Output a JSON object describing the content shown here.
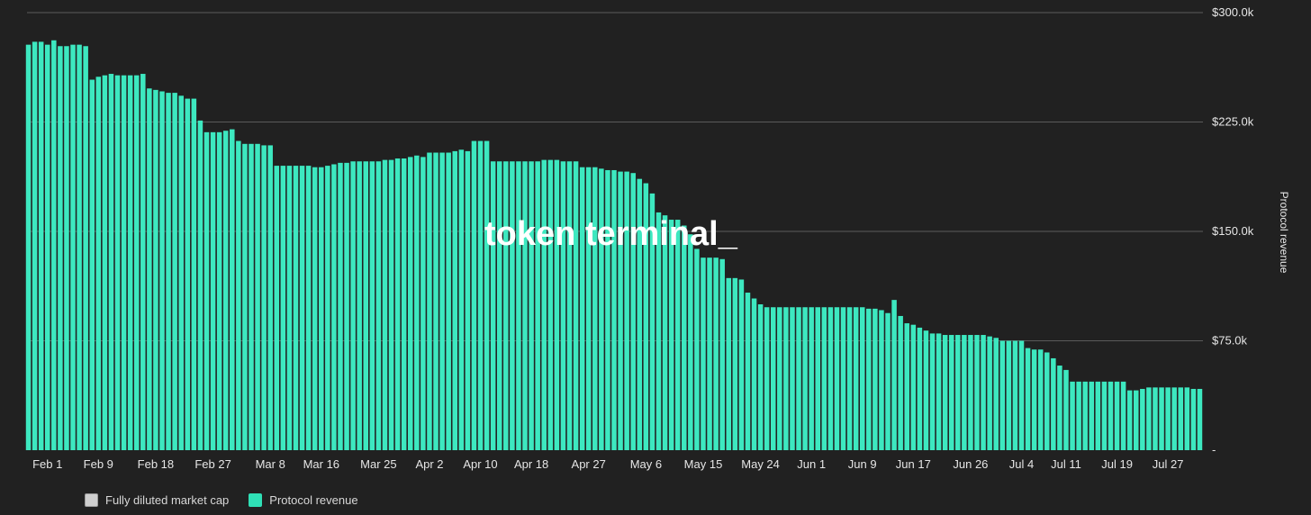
{
  "chart_data": {
    "type": "bar",
    "watermark": "token terminal_",
    "colors": {
      "background": "#212121",
      "bar": "#3DE8C0",
      "grid": "#5a5a5a",
      "text": "#e6e6e6",
      "legend_market_cap": "#cfcfcf",
      "legend_revenue": "#2fe0b6"
    },
    "y_axis": {
      "label": "Protocol revenue",
      "side": "right",
      "ylim": [
        0,
        300000
      ],
      "ticks": [
        {
          "value": 0,
          "label": "-"
        },
        {
          "value": 75000,
          "label": "$75.0k"
        },
        {
          "value": 150000,
          "label": "$150.0k"
        },
        {
          "value": 225000,
          "label": "$225.0k"
        },
        {
          "value": 300000,
          "label": "$300.0k"
        }
      ]
    },
    "x_axis": {
      "first_date": "Feb 1",
      "last_date": "Jul 27",
      "ticks": [
        {
          "label": "Feb 1",
          "index": 3
        },
        {
          "label": "Feb 9",
          "index": 11
        },
        {
          "label": "Feb 18",
          "index": 20
        },
        {
          "label": "Feb 27",
          "index": 29
        },
        {
          "label": "Mar 8",
          "index": 38
        },
        {
          "label": "Mar 16",
          "index": 46
        },
        {
          "label": "Mar 25",
          "index": 55
        },
        {
          "label": "Apr 2",
          "index": 63
        },
        {
          "label": "Apr 10",
          "index": 71
        },
        {
          "label": "Apr 18",
          "index": 79
        },
        {
          "label": "Apr 27",
          "index": 88
        },
        {
          "label": "May 6",
          "index": 97
        },
        {
          "label": "May 15",
          "index": 106
        },
        {
          "label": "May 24",
          "index": 115
        },
        {
          "label": "Jun 1",
          "index": 123
        },
        {
          "label": "Jun 9",
          "index": 131
        },
        {
          "label": "Jun 17",
          "index": 139
        },
        {
          "label": "Jun 26",
          "index": 148
        },
        {
          "label": "Jul 4",
          "index": 156
        },
        {
          "label": "Jul 11",
          "index": 163
        },
        {
          "label": "Jul 19",
          "index": 171
        },
        {
          "label": "Jul 27",
          "index": 179
        }
      ]
    },
    "legend": [
      {
        "name": "Fully diluted market cap",
        "color": "#cfcfcf"
      },
      {
        "name": "Protocol revenue",
        "color": "#2fe0b6"
      }
    ],
    "series": [
      {
        "name": "Protocol revenue",
        "values": [
          278000,
          280000,
          280000,
          278000,
          281000,
          277000,
          277000,
          278000,
          278000,
          277000,
          254000,
          256000,
          257000,
          258000,
          257000,
          257000,
          257000,
          257000,
          258000,
          248000,
          247000,
          246000,
          245000,
          245000,
          243000,
          241000,
          241000,
          226000,
          218000,
          218000,
          218000,
          219000,
          220000,
          212000,
          210000,
          210000,
          210000,
          209000,
          209000,
          195000,
          195000,
          195000,
          195000,
          195000,
          195000,
          194000,
          194000,
          195000,
          196000,
          197000,
          197000,
          198000,
          198000,
          198000,
          198000,
          198000,
          199000,
          199000,
          200000,
          200000,
          201000,
          202000,
          201000,
          204000,
          204000,
          204000,
          204000,
          205000,
          206000,
          205000,
          212000,
          212000,
          212000,
          198000,
          198000,
          198000,
          198000,
          198000,
          198000,
          198000,
          198000,
          199000,
          199000,
          199000,
          198000,
          198000,
          198000,
          194000,
          194000,
          194000,
          193000,
          192000,
          192000,
          191000,
          191000,
          190000,
          186000,
          183000,
          176000,
          163000,
          161000,
          158000,
          158000,
          154000,
          148000,
          138000,
          132000,
          132000,
          132000,
          131000,
          118000,
          118000,
          117000,
          108000,
          104000,
          100000,
          98000,
          98000,
          98000,
          98000,
          98000,
          98000,
          98000,
          98000,
          98000,
          98000,
          98000,
          98000,
          98000,
          98000,
          98000,
          98000,
          97000,
          97000,
          96000,
          94000,
          103000,
          92000,
          87000,
          86000,
          84000,
          82000,
          80000,
          80000,
          79000,
          79000,
          79000,
          79000,
          79000,
          79000,
          79000,
          78000,
          77000,
          75000,
          75000,
          75000,
          75000,
          70000,
          69000,
          69000,
          67000,
          63000,
          58000,
          55000,
          47000,
          47000,
          47000,
          47000,
          47000,
          47000,
          47000,
          47000,
          47000,
          41000,
          41000,
          42000,
          43000,
          43000,
          43000,
          43000,
          43000,
          43000,
          43000,
          42000,
          42000
        ]
      }
    ]
  }
}
